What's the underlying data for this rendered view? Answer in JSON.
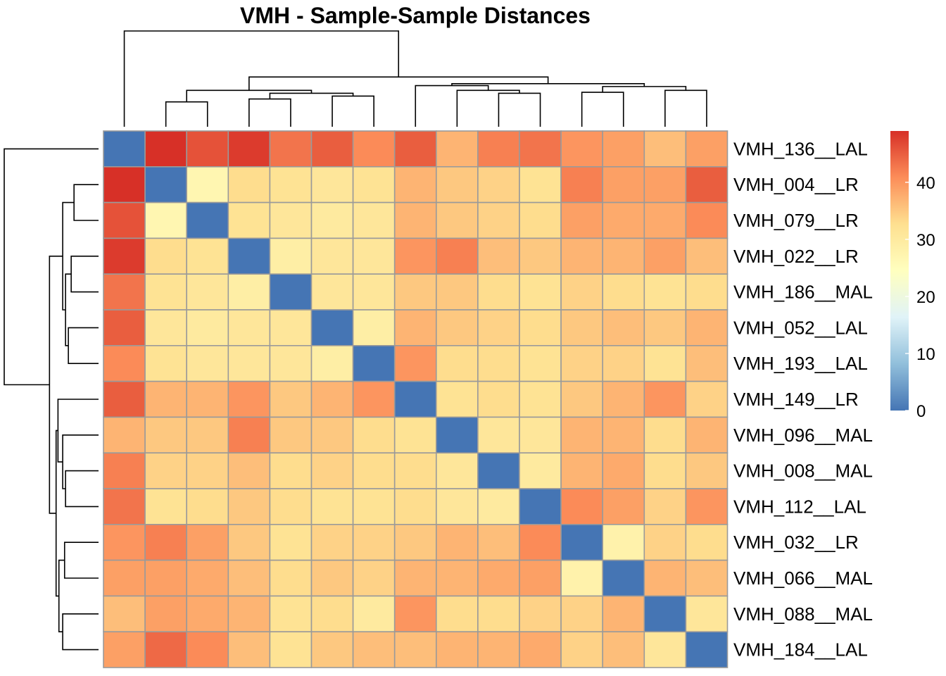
{
  "chart_data": {
    "type": "heatmap",
    "title": "VMH - Sample-Sample Distances",
    "labels": [
      "VMH_136__LAL",
      "VMH_004__LR",
      "VMH_079__LR",
      "VMH_022__LR",
      "VMH_186__MAL",
      "VMH_052__LAL",
      "VMH_193__LAL",
      "VMH_149__LR",
      "VMH_096__MAL",
      "VMH_008__MAL",
      "VMH_112__LAL",
      "VMH_032__LR",
      "VMH_066__MAL",
      "VMH_088__MAL",
      "VMH_184__LAL"
    ],
    "matrix": [
      [
        0,
        49,
        46,
        48,
        43,
        45,
        41,
        45,
        37,
        42,
        43,
        40,
        39,
        36,
        39
      ],
      [
        49,
        0,
        27,
        33,
        32,
        31,
        32,
        37,
        35,
        34,
        32,
        42,
        39,
        39,
        45
      ],
      [
        46,
        27,
        0,
        32,
        31,
        30,
        31,
        37,
        35,
        34,
        33,
        39,
        38,
        38,
        41
      ],
      [
        48,
        33,
        32,
        0,
        29,
        31,
        31,
        40,
        42,
        36,
        35,
        37,
        37,
        39,
        36
      ],
      [
        43,
        32,
        31,
        29,
        0,
        31,
        31,
        35,
        35,
        33,
        32,
        34,
        33,
        32,
        33
      ],
      [
        45,
        31,
        30,
        31,
        31,
        0,
        29,
        37,
        35,
        34,
        33,
        35,
        36,
        35,
        37
      ],
      [
        41,
        32,
        31,
        31,
        31,
        29,
        0,
        40,
        33,
        33,
        32,
        34,
        34,
        32,
        36
      ],
      [
        45,
        37,
        37,
        40,
        35,
        37,
        40,
        0,
        32,
        33,
        32,
        35,
        37,
        40,
        34
      ],
      [
        37,
        35,
        35,
        42,
        35,
        35,
        33,
        32,
        0,
        31,
        31,
        37,
        37,
        33,
        37
      ],
      [
        42,
        34,
        34,
        36,
        33,
        34,
        33,
        33,
        31,
        0,
        30,
        37,
        38,
        33,
        35
      ],
      [
        43,
        32,
        33,
        35,
        33,
        32,
        32,
        33,
        31,
        30,
        0,
        41,
        39,
        34,
        40
      ],
      [
        40,
        42,
        39,
        35,
        32,
        34,
        34,
        35,
        37,
        36,
        41,
        0,
        28,
        34,
        33
      ],
      [
        39,
        39,
        38,
        36,
        33,
        35,
        34,
        37,
        37,
        38,
        39,
        28,
        0,
        37,
        36
      ],
      [
        36,
        39,
        38,
        37,
        32,
        33,
        30,
        40,
        33,
        33,
        34,
        34,
        37,
        0,
        31
      ],
      [
        39,
        44,
        41,
        36,
        32,
        35,
        36,
        36,
        37,
        37,
        38,
        34,
        36,
        31,
        0
      ]
    ],
    "colorbar": {
      "ticks": [
        0,
        10,
        20,
        30,
        40
      ],
      "min": 0,
      "max": 49
    },
    "colors": [
      "#4575b4",
      "#91bfdb",
      "#e0f3f8",
      "#ffffbf",
      "#fee090",
      "#fc8d59",
      "#d73027"
    ]
  }
}
